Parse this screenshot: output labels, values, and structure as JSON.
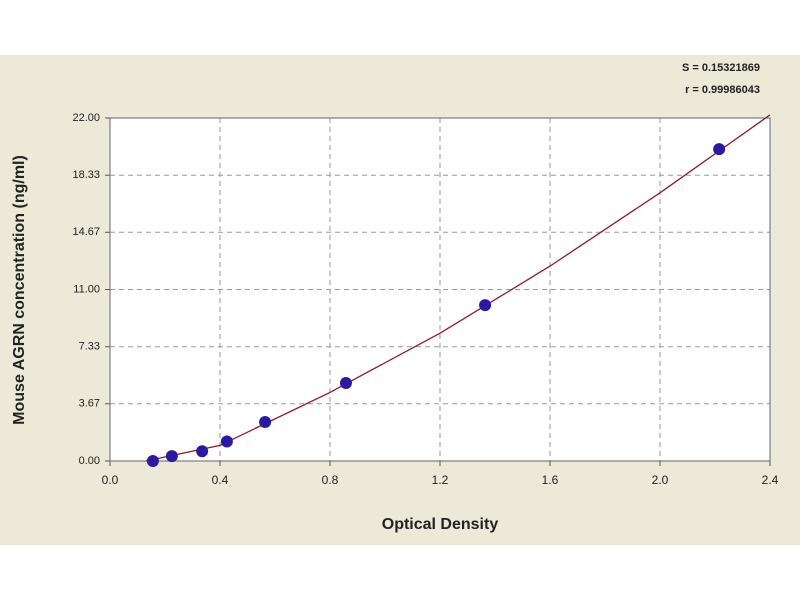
{
  "chart_data": {
    "type": "scatter",
    "x_label": "Optical Density",
    "y_label": "Mouse AGRN concentration (ng/ml)",
    "annotations": [
      "S = 0.15321869",
      "r = 0.99986043"
    ],
    "points": {
      "color": "#2b1aa0",
      "x": [
        0.156,
        0.225,
        0.335,
        0.425,
        0.564,
        0.858,
        1.364,
        2.215
      ],
      "y": [
        0,
        0.313,
        0.625,
        1.25,
        2.5,
        5,
        10,
        20
      ]
    },
    "curve": {
      "color": "#8b1a2e",
      "x": [
        0.13,
        0.4,
        0.8,
        1.2,
        1.6,
        2.0,
        2.4
      ],
      "y": [
        0,
        1.0,
        4.4,
        8.2,
        12.5,
        17.2,
        22.2
      ]
    },
    "xlim": [
      0,
      2.4
    ],
    "xticks": [
      {
        "value": 0,
        "label": "0.0"
      },
      0.4,
      0.8,
      1.2,
      1.6,
      {
        "value": 2,
        "label": "2.0"
      },
      2.4
    ],
    "ylim": [
      0,
      22
    ],
    "yticks": [
      {
        "value": 0,
        "label": "0.00"
      },
      3.67,
      7.33,
      {
        "value": 11,
        "label": "11.00"
      },
      14.67,
      18.33,
      {
        "value": 22,
        "label": "22.00"
      }
    ],
    "grid": true
  }
}
